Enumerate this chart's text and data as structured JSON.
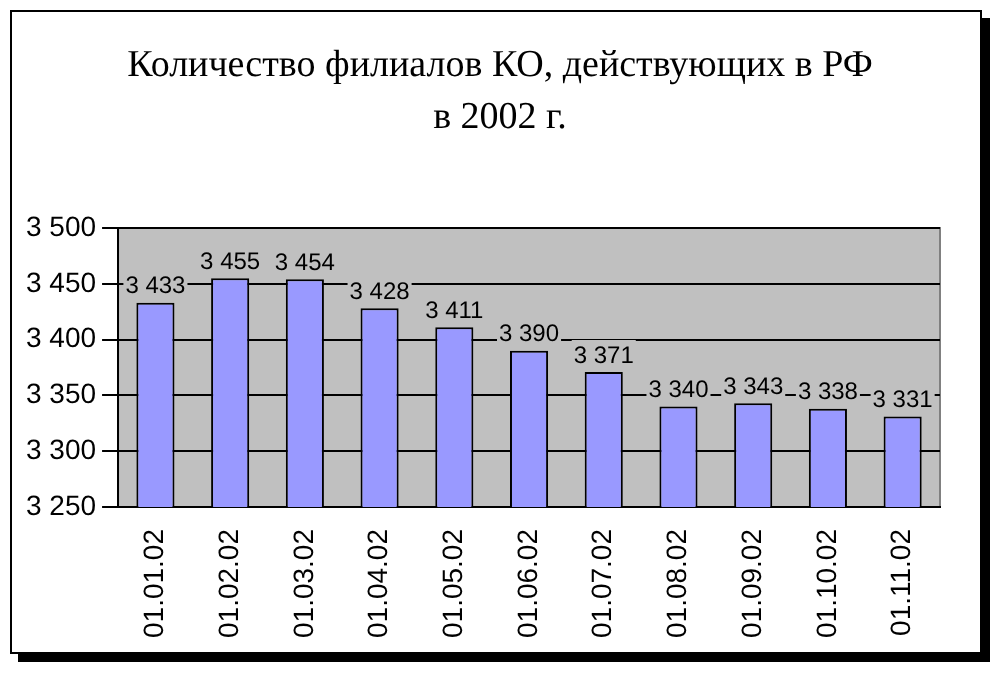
{
  "chart_data": {
    "type": "bar",
    "title": "Количество филиалов КО, действующих в РФ в 2002 г.",
    "categories": [
      "01.01.02",
      "01.02.02",
      "01.03.02",
      "01.04.02",
      "01.05.02",
      "01.06.02",
      "01.07.02",
      "01.08.02",
      "01.09.02",
      "01.10.02",
      "01.11.02"
    ],
    "values": [
      3433,
      3455,
      3454,
      3428,
      3411,
      3390,
      3371,
      3340,
      3343,
      3338,
      3331
    ],
    "value_labels": [
      "3 433",
      "3 455",
      "3 454",
      "3 428",
      "3 411",
      "3 390",
      "3 371",
      "3 340",
      "3 343",
      "3 338",
      "3 331"
    ],
    "color": "#9999ff",
    "ylim": [
      3250,
      3500
    ],
    "yticks": [
      {
        "value": 3250,
        "label": "3 250"
      },
      {
        "value": 3300,
        "label": "3 300"
      },
      {
        "value": 3350,
        "label": "3 350"
      },
      {
        "value": 3400,
        "label": "3 400"
      },
      {
        "value": 3450,
        "label": "3 450"
      },
      {
        "value": 3500,
        "label": "3 500"
      }
    ],
    "grid": "y",
    "legend": false
  }
}
